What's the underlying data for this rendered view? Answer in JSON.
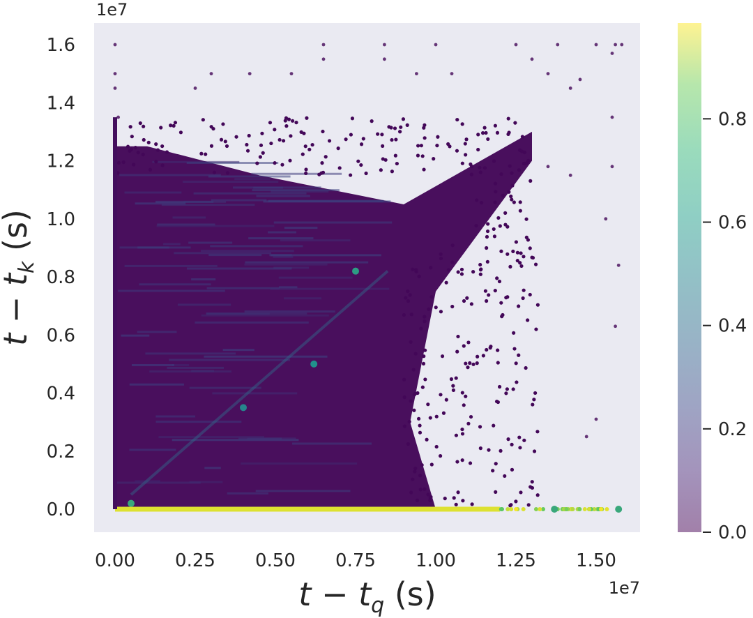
{
  "chart_data": {
    "type": "scatter",
    "xlabel": "t − t_q (s)",
    "ylabel": "t − t_k (s)",
    "x_offset_label": "1e7",
    "y_offset_label": "1e7",
    "xlim": [
      -0.2,
      1.66
    ],
    "ylim": [
      -0.08,
      1.67
    ],
    "x_ticks": [
      0.0,
      0.25,
      0.5,
      0.75,
      1.0,
      1.25,
      1.5
    ],
    "x_tick_labels": [
      "0.00",
      "0.25",
      "0.50",
      "0.75",
      "1.00",
      "1.25",
      "1.50"
    ],
    "y_ticks": [
      0.0,
      0.2,
      0.4,
      0.6,
      0.8,
      1.0,
      1.2,
      1.4,
      1.6
    ],
    "y_tick_labels": [
      "0.0",
      "0.2",
      "0.4",
      "0.6",
      "0.8",
      "1.0",
      "1.2",
      "1.4",
      "1.6"
    ],
    "grid": false,
    "background": "#eaeaf2",
    "colormap": "viridis",
    "colorbar": {
      "range": [
        0.0,
        1.0
      ],
      "ticks": [
        0.0,
        0.2,
        0.4,
        0.6,
        0.8
      ],
      "tick_labels": [
        "0.0",
        "0.2",
        "0.4",
        "0.6",
        "0.8"
      ]
    },
    "regions": [
      {
        "name": "dense-triangle",
        "polygon": [
          [
            0.0,
            0.0
          ],
          [
            0.0,
            1.25
          ],
          [
            0.1,
            1.25
          ],
          [
            0.45,
            1.15
          ],
          [
            0.9,
            1.05
          ],
          [
            1.3,
            1.3
          ],
          [
            1.3,
            1.2
          ],
          [
            1.0,
            0.75
          ],
          [
            0.92,
            0.3
          ],
          [
            1.0,
            0.0
          ]
        ],
        "value": 0.02
      },
      {
        "name": "bright-baseline",
        "x_range": [
          0.0,
          1.55
        ],
        "y": 0.0,
        "value": 0.95
      },
      {
        "name": "diagonal",
        "from": [
          0.05,
          0.05
        ],
        "to": [
          0.85,
          0.82
        ],
        "value": 0.35
      }
    ],
    "highlight_points": [
      {
        "x": 0.75,
        "y": 0.82,
        "value": 0.55
      },
      {
        "x": 0.62,
        "y": 0.5,
        "value": 0.5
      },
      {
        "x": 0.05,
        "y": 0.02,
        "value": 0.6
      },
      {
        "x": 0.4,
        "y": 0.35,
        "value": 0.45
      },
      {
        "x": 1.37,
        "y": 0.0,
        "value": 0.6
      },
      {
        "x": 1.57,
        "y": 0.0,
        "value": 0.6
      }
    ],
    "outlier_points": [
      [
        0.0,
        1.6
      ],
      [
        0.0,
        1.5
      ],
      [
        0.0,
        1.45
      ],
      [
        0.01,
        1.35
      ],
      [
        0.25,
        1.45
      ],
      [
        0.3,
        1.5
      ],
      [
        0.42,
        1.5
      ],
      [
        0.55,
        1.5
      ],
      [
        0.65,
        1.6
      ],
      [
        0.65,
        1.55
      ],
      [
        0.84,
        1.6
      ],
      [
        0.84,
        1.55
      ],
      [
        0.94,
        1.5
      ],
      [
        1.0,
        1.6
      ],
      [
        1.05,
        1.5
      ],
      [
        1.25,
        1.6
      ],
      [
        1.3,
        1.55
      ],
      [
        1.38,
        1.6
      ],
      [
        1.5,
        1.6
      ],
      [
        1.55,
        1.57
      ],
      [
        1.58,
        1.6
      ],
      [
        1.42,
        1.45
      ],
      [
        1.45,
        1.48
      ],
      [
        1.35,
        1.5
      ],
      [
        1.56,
        1.6
      ],
      [
        1.57,
        0.84
      ],
      [
        1.56,
        0.63
      ],
      [
        1.5,
        0.31
      ],
      [
        1.47,
        0.25
      ],
      [
        1.53,
        1.0
      ],
      [
        1.42,
        1.15
      ],
      [
        1.35,
        1.18
      ],
      [
        1.55,
        1.35
      ],
      [
        1.55,
        1.18
      ]
    ]
  }
}
